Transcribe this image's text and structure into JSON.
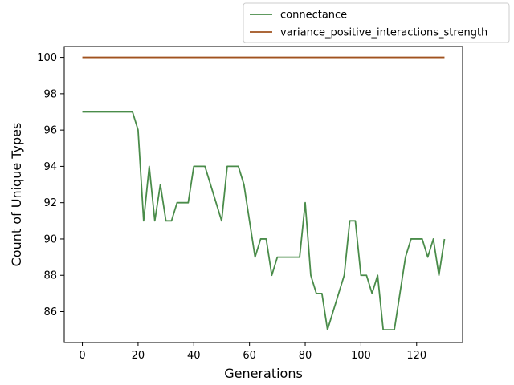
{
  "chart_data": {
    "type": "line",
    "xlabel": "Generations",
    "ylabel": "Count of Unique Types",
    "xlim": [
      -6.5,
      136.5
    ],
    "ylim": [
      84.3,
      100.6
    ],
    "x_ticks": [
      0,
      20,
      40,
      60,
      80,
      100,
      120
    ],
    "y_ticks": [
      86,
      88,
      90,
      92,
      94,
      96,
      98,
      100
    ],
    "grid": false,
    "legend_position": "top-right, outside plot area",
    "series": [
      {
        "name": "connectance",
        "color": "#4a8c4a",
        "x": [
          0,
          2,
          4,
          6,
          8,
          10,
          12,
          14,
          16,
          18,
          20,
          22,
          24,
          26,
          28,
          30,
          32,
          34,
          36,
          38,
          40,
          42,
          44,
          46,
          48,
          50,
          52,
          54,
          56,
          58,
          60,
          62,
          64,
          66,
          68,
          70,
          72,
          74,
          76,
          78,
          80,
          82,
          84,
          86,
          88,
          90,
          92,
          94,
          96,
          98,
          100,
          102,
          104,
          106,
          108,
          110,
          112,
          114,
          116,
          118,
          120,
          122,
          124,
          126,
          128,
          130
        ],
        "values": [
          97,
          97,
          97,
          97,
          97,
          97,
          97,
          97,
          97,
          97,
          96,
          91,
          94,
          91,
          93,
          91,
          91,
          92,
          92,
          92,
          94,
          94,
          94,
          93,
          92,
          91,
          94,
          94,
          94,
          93,
          91,
          89,
          90,
          90,
          88,
          89,
          89,
          89,
          89,
          89,
          92,
          88,
          87,
          87,
          85,
          86,
          87,
          88,
          91,
          91,
          88,
          88,
          87,
          88,
          85,
          85,
          85,
          87,
          89,
          90,
          90,
          90,
          89,
          90,
          88,
          90
        ]
      },
      {
        "name": "variance_positive_interactions_strength",
        "color": "#a0521e",
        "x": [
          0,
          130
        ],
        "values": [
          100,
          100
        ]
      }
    ]
  }
}
